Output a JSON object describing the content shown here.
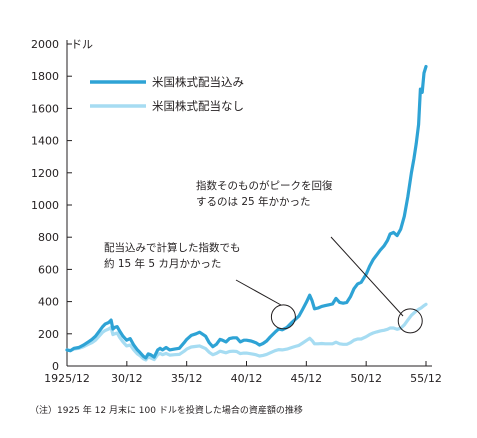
{
  "chart_data": {
    "type": "line",
    "unit_label": "ドル",
    "xlabel": "",
    "ylabel": "",
    "ylim": [
      0,
      2000
    ],
    "yticks": [
      0,
      200,
      400,
      600,
      800,
      1000,
      1200,
      1400,
      1600,
      1800,
      2000
    ],
    "xlim": [
      1925.917,
      1955.917
    ],
    "xticks": [
      {
        "year": 1925.917,
        "label": "1925/12"
      },
      {
        "year": 1930.917,
        "label": "30/12"
      },
      {
        "year": 1935.917,
        "label": "35/12"
      },
      {
        "year": 1940.917,
        "label": "40/12"
      },
      {
        "year": 1945.917,
        "label": "45/12"
      },
      {
        "year": 1950.917,
        "label": "50/12"
      },
      {
        "year": 1955.917,
        "label": "55/12"
      }
    ],
    "grid": false,
    "legend_position": "top-left",
    "series": [
      {
        "name": "米国株式配当込み",
        "color": "#2ea3d5",
        "points": [
          [
            1925.917,
            100
          ],
          [
            1926.2,
            95
          ],
          [
            1926.5,
            110
          ],
          [
            1926.9,
            115
          ],
          [
            1927.3,
            130
          ],
          [
            1927.7,
            150
          ],
          [
            1928.0,
            165
          ],
          [
            1928.3,
            185
          ],
          [
            1928.6,
            215
          ],
          [
            1928.9,
            245
          ],
          [
            1929.1,
            260
          ],
          [
            1929.4,
            270
          ],
          [
            1929.6,
            285
          ],
          [
            1929.75,
            230
          ],
          [
            1929.9,
            240
          ],
          [
            1930.1,
            245
          ],
          [
            1930.3,
            220
          ],
          [
            1930.6,
            185
          ],
          [
            1930.9,
            160
          ],
          [
            1931.2,
            170
          ],
          [
            1931.5,
            130
          ],
          [
            1931.8,
            100
          ],
          [
            1932.0,
            85
          ],
          [
            1932.3,
            60
          ],
          [
            1932.5,
            50
          ],
          [
            1932.7,
            75
          ],
          [
            1932.9,
            70
          ],
          [
            1933.2,
            55
          ],
          [
            1933.5,
            100
          ],
          [
            1933.7,
            110
          ],
          [
            1933.9,
            100
          ],
          [
            1934.2,
            115
          ],
          [
            1934.5,
            100
          ],
          [
            1934.9,
            105
          ],
          [
            1935.3,
            110
          ],
          [
            1935.7,
            145
          ],
          [
            1935.917,
            165
          ],
          [
            1936.3,
            190
          ],
          [
            1936.7,
            200
          ],
          [
            1937.0,
            210
          ],
          [
            1937.2,
            200
          ],
          [
            1937.5,
            185
          ],
          [
            1937.8,
            145
          ],
          [
            1938.1,
            120
          ],
          [
            1938.4,
            135
          ],
          [
            1938.7,
            165
          ],
          [
            1938.9,
            160
          ],
          [
            1939.2,
            150
          ],
          [
            1939.5,
            170
          ],
          [
            1939.8,
            175
          ],
          [
            1940.1,
            175
          ],
          [
            1940.4,
            150
          ],
          [
            1940.7,
            160
          ],
          [
            1940.917,
            160
          ],
          [
            1941.3,
            155
          ],
          [
            1941.7,
            145
          ],
          [
            1942.0,
            130
          ],
          [
            1942.3,
            140
          ],
          [
            1942.6,
            155
          ],
          [
            1942.9,
            180
          ],
          [
            1943.3,
            210
          ],
          [
            1943.6,
            230
          ],
          [
            1943.9,
            225
          ],
          [
            1944.3,
            240
          ],
          [
            1944.7,
            270
          ],
          [
            1945.0,
            290
          ],
          [
            1945.3,
            310
          ],
          [
            1945.6,
            350
          ],
          [
            1945.917,
            395
          ],
          [
            1946.2,
            440
          ],
          [
            1946.4,
            405
          ],
          [
            1946.6,
            355
          ],
          [
            1946.9,
            360
          ],
          [
            1947.2,
            370
          ],
          [
            1947.5,
            375
          ],
          [
            1947.8,
            380
          ],
          [
            1948.1,
            385
          ],
          [
            1948.4,
            420
          ],
          [
            1948.7,
            395
          ],
          [
            1949.0,
            390
          ],
          [
            1949.3,
            395
          ],
          [
            1949.6,
            430
          ],
          [
            1949.9,
            480
          ],
          [
            1950.2,
            510
          ],
          [
            1950.5,
            520
          ],
          [
            1950.917,
            570
          ],
          [
            1951.2,
            620
          ],
          [
            1951.5,
            660
          ],
          [
            1951.8,
            690
          ],
          [
            1952.1,
            720
          ],
          [
            1952.4,
            745
          ],
          [
            1952.7,
            780
          ],
          [
            1952.917,
            820
          ],
          [
            1953.2,
            830
          ],
          [
            1953.5,
            810
          ],
          [
            1953.8,
            850
          ],
          [
            1954.1,
            930
          ],
          [
            1954.4,
            1050
          ],
          [
            1954.7,
            1200
          ],
          [
            1954.917,
            1290
          ],
          [
            1955.1,
            1380
          ],
          [
            1955.3,
            1500
          ],
          [
            1955.45,
            1720
          ],
          [
            1955.6,
            1700
          ],
          [
            1955.75,
            1820
          ],
          [
            1955.917,
            1860
          ]
        ]
      },
      {
        "name": "米国株式配当なし",
        "color": "#a6dcf2",
        "points": [
          [
            1925.917,
            100
          ],
          [
            1926.2,
            95
          ],
          [
            1926.5,
            105
          ],
          [
            1926.9,
            110
          ],
          [
            1927.3,
            120
          ],
          [
            1927.7,
            135
          ],
          [
            1928.0,
            145
          ],
          [
            1928.3,
            160
          ],
          [
            1928.6,
            185
          ],
          [
            1928.9,
            210
          ],
          [
            1929.1,
            220
          ],
          [
            1929.4,
            230
          ],
          [
            1929.6,
            240
          ],
          [
            1929.75,
            195
          ],
          [
            1929.9,
            200
          ],
          [
            1930.1,
            205
          ],
          [
            1930.3,
            180
          ],
          [
            1930.6,
            150
          ],
          [
            1930.9,
            125
          ],
          [
            1931.2,
            130
          ],
          [
            1931.5,
            100
          ],
          [
            1931.8,
            75
          ],
          [
            1932.0,
            65
          ],
          [
            1932.3,
            45
          ],
          [
            1932.5,
            38
          ],
          [
            1932.7,
            55
          ],
          [
            1932.9,
            50
          ],
          [
            1933.2,
            40
          ],
          [
            1933.5,
            70
          ],
          [
            1933.7,
            78
          ],
          [
            1933.9,
            70
          ],
          [
            1934.2,
            78
          ],
          [
            1934.5,
            68
          ],
          [
            1934.9,
            70
          ],
          [
            1935.3,
            72
          ],
          [
            1935.7,
            92
          ],
          [
            1935.917,
            105
          ],
          [
            1936.3,
            118
          ],
          [
            1936.7,
            122
          ],
          [
            1937.0,
            125
          ],
          [
            1937.2,
            118
          ],
          [
            1937.5,
            108
          ],
          [
            1937.8,
            85
          ],
          [
            1938.1,
            70
          ],
          [
            1938.4,
            78
          ],
          [
            1938.7,
            92
          ],
          [
            1938.9,
            88
          ],
          [
            1939.2,
            82
          ],
          [
            1939.5,
            90
          ],
          [
            1939.8,
            92
          ],
          [
            1940.1,
            90
          ],
          [
            1940.4,
            77
          ],
          [
            1940.7,
            80
          ],
          [
            1940.917,
            80
          ],
          [
            1941.3,
            76
          ],
          [
            1941.7,
            70
          ],
          [
            1942.0,
            62
          ],
          [
            1942.3,
            66
          ],
          [
            1942.6,
            72
          ],
          [
            1942.9,
            82
          ],
          [
            1943.3,
            95
          ],
          [
            1943.6,
            102
          ],
          [
            1943.9,
            100
          ],
          [
            1944.3,
            105
          ],
          [
            1944.7,
            115
          ],
          [
            1945.0,
            122
          ],
          [
            1945.3,
            128
          ],
          [
            1945.6,
            142
          ],
          [
            1945.917,
            158
          ],
          [
            1946.2,
            172
          ],
          [
            1946.4,
            158
          ],
          [
            1946.6,
            138
          ],
          [
            1946.9,
            138
          ],
          [
            1947.2,
            140
          ],
          [
            1947.5,
            138
          ],
          [
            1947.8,
            138
          ],
          [
            1948.1,
            138
          ],
          [
            1948.4,
            148
          ],
          [
            1948.7,
            138
          ],
          [
            1949.0,
            135
          ],
          [
            1949.3,
            135
          ],
          [
            1949.6,
            145
          ],
          [
            1949.9,
            160
          ],
          [
            1950.2,
            168
          ],
          [
            1950.5,
            168
          ],
          [
            1950.917,
            182
          ],
          [
            1951.2,
            195
          ],
          [
            1951.5,
            205
          ],
          [
            1951.8,
            212
          ],
          [
            1952.1,
            218
          ],
          [
            1952.4,
            222
          ],
          [
            1952.7,
            228
          ],
          [
            1952.917,
            236
          ],
          [
            1953.2,
            236
          ],
          [
            1953.5,
            228
          ],
          [
            1953.8,
            235
          ],
          [
            1954.1,
            255
          ],
          [
            1954.4,
            285
          ],
          [
            1954.7,
            315
          ],
          [
            1954.917,
            330
          ],
          [
            1955.1,
            342
          ],
          [
            1955.3,
            352
          ],
          [
            1955.5,
            360
          ],
          [
            1955.7,
            372
          ],
          [
            1955.917,
            383
          ]
        ]
      }
    ],
    "annotations": [
      {
        "lines": [
          "配当込みで計算した指数でも",
          "約 15 年 5 カ月かかった"
        ],
        "circle_at": [
          1944.0,
          305
        ]
      },
      {
        "lines": [
          "指数そのものがピークを回復",
          "するのは 25 年かかった"
        ],
        "circle_at": [
          1954.6,
          280
        ]
      }
    ],
    "footnote": "（注）1925 年 12 月末に 100 ドルを投資した場合の資産額の推移"
  }
}
